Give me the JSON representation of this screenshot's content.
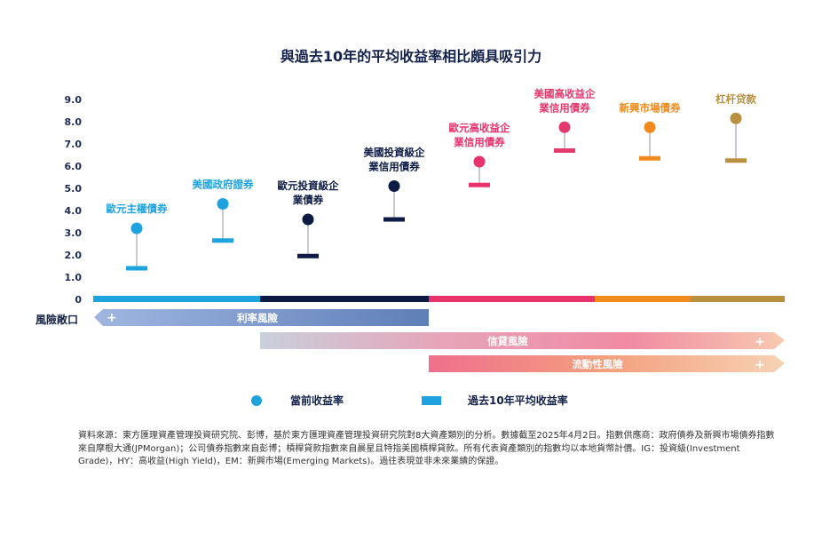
{
  "colors": {
    "navy": "#14224a",
    "eur_blue": "#1fa3de",
    "eur_ig": "#0c1a44",
    "us_ig": "#0c1a44",
    "eur_hy": "#e8326b",
    "us_hy": "#e23a6d",
    "em": "#f08a1c",
    "lev": "#b8903f",
    "rate_band": "#7b97c8",
    "credit_band": "#ef7a94",
    "liquidity_band": "#f2a870"
  },
  "chart_data": {
    "type": "dot-range",
    "title": "與過去10年的平均收益率相比頗具吸引力",
    "yticks": [
      "9.0",
      "8.0",
      "7.0",
      "6.0",
      "5.0",
      "4.0",
      "3.0",
      "2.0",
      "1.0",
      "0"
    ],
    "ylim": [
      0,
      9
    ],
    "categories": [
      {
        "label_lines": [
          "歐元主權債券"
        ],
        "current": 3.2,
        "avg10y": 1.4,
        "color": "#1fa3de"
      },
      {
        "label_lines": [
          "美國政府證券"
        ],
        "current": 4.3,
        "avg10y": 2.65,
        "color": "#1fa3de"
      },
      {
        "label_lines": [
          "歐元投資級企",
          "業債券"
        ],
        "current": 3.6,
        "avg10y": 1.95,
        "color": "#0c1a44"
      },
      {
        "label_lines": [
          "美國投資級企",
          "業信用債券"
        ],
        "current": 5.1,
        "avg10y": 3.6,
        "color": "#0c1a44"
      },
      {
        "label_lines": [
          "歐元高收益企",
          "業信用債券"
        ],
        "current": 6.2,
        "avg10y": 5.15,
        "color": "#e8326b"
      },
      {
        "label_lines": [
          "美國高收益企",
          "業信用債券"
        ],
        "current": 7.75,
        "avg10y": 6.7,
        "color": "#e23a6d"
      },
      {
        "label_lines": [
          "新興市場債券"
        ],
        "current": 7.75,
        "avg10y": 6.35,
        "color": "#f08a1c"
      },
      {
        "label_lines": [
          "杠杆贷款"
        ],
        "current": 8.15,
        "avg10y": 6.25,
        "color": "#b8903f"
      }
    ],
    "axis_segments": [
      {
        "color": "#1fa3de"
      },
      {
        "color": "#0c1a44"
      },
      {
        "color": "#e8326b"
      },
      {
        "color": "#f08a1c"
      },
      {
        "color": "#b8903f"
      }
    ],
    "risk_bands": [
      {
        "label": "利率風險",
        "plus": "+"
      },
      {
        "label": "信貸風險",
        "plus": "+"
      },
      {
        "label": "流動性風險",
        "plus": "+"
      }
    ],
    "legend": [
      {
        "label": "當前收益率",
        "shape": "dot"
      },
      {
        "label": "過去10年平均收益率",
        "shape": "bar"
      }
    ]
  },
  "exposure_label": "風險敞口",
  "footnote": "資料來源：東方匯理資產管理投資研究院、彭博，基於東方匯理資產管理投資研究院對8大資產類別的分析。數據截至2025年4月2日。指數供應商：政府債券及新興市場債券指數來自摩根大通(JPMorgan)；公司債券指數來自彭博；槓桿貸款指數來自晨星且特指美國槓桿貸款。所有代表資產類別的指數均以本地貨幣計價。IG：投資級(Investment Grade)，HY：高收益(High Yield)，EM：新興市場(Emerging Markets)。過往表現並非未來業績的保證。"
}
